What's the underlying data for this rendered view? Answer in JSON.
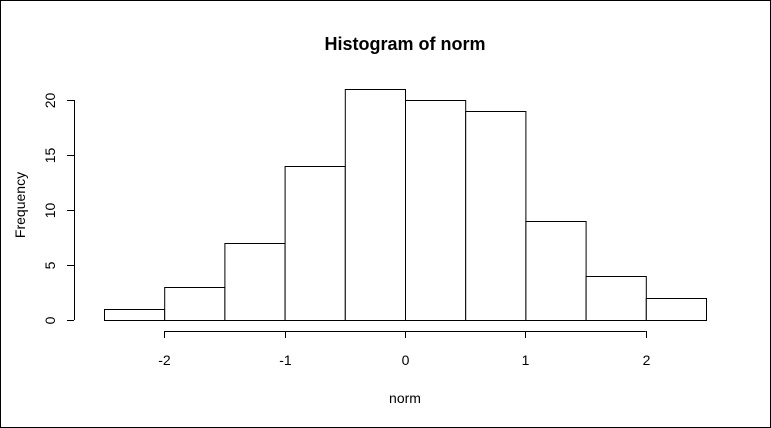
{
  "chart_data": {
    "type": "bar",
    "title": "Histogram of norm",
    "xlabel": "norm",
    "ylabel": "Frequency",
    "bins": [
      {
        "start": -2.5,
        "end": -2.0,
        "count": 1
      },
      {
        "start": -2.0,
        "end": -1.5,
        "count": 3
      },
      {
        "start": -1.5,
        "end": -1.0,
        "count": 7
      },
      {
        "start": -1.0,
        "end": -0.5,
        "count": 14
      },
      {
        "start": -0.5,
        "end": 0.0,
        "count": 21
      },
      {
        "start": 0.0,
        "end": 0.5,
        "count": 20
      },
      {
        "start": 0.5,
        "end": 1.0,
        "count": 19
      },
      {
        "start": 1.0,
        "end": 1.5,
        "count": 9
      },
      {
        "start": 1.5,
        "end": 2.0,
        "count": 4
      },
      {
        "start": 2.0,
        "end": 2.5,
        "count": 2
      }
    ],
    "xticks": [
      -2,
      -1,
      0,
      1,
      2
    ],
    "yticks": [
      0,
      5,
      10,
      15,
      20
    ],
    "xlim": [
      -2.5,
      2.5
    ],
    "ylim": [
      0,
      21
    ],
    "grid": false,
    "legend": "none",
    "colors": {
      "fill": "#ffffff",
      "stroke": "#000000"
    }
  }
}
